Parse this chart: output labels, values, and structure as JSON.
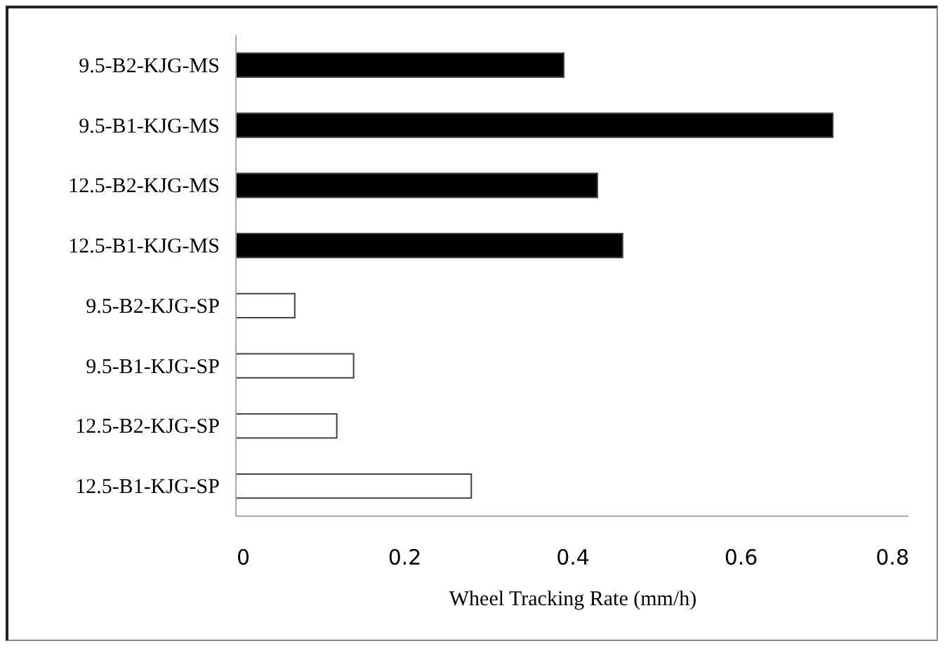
{
  "chart_data": {
    "type": "bar",
    "orientation": "horizontal",
    "xlabel": "Wheel Tracking Rate (mm/h)",
    "categories": [
      "9.5-B2-KJG-MS",
      "9.5-B1-KJG-MS",
      "12.5-B2-KJG-MS",
      "12.5-B1-KJG-MS",
      "9.5-B2-KJG-SP",
      "9.5-B1-KJG-SP",
      "12.5-B2-KJG-SP",
      "12.5-B1-KJG-SP"
    ],
    "values": [
      0.39,
      0.71,
      0.43,
      0.46,
      0.07,
      0.14,
      0.12,
      0.28
    ],
    "colors": [
      "#000000",
      "#000000",
      "#000000",
      "#000000",
      "#ffffff",
      "#ffffff",
      "#ffffff",
      "#ffffff"
    ],
    "xlim": [
      0,
      0.8
    ],
    "xticks": [
      0,
      0.2,
      0.4,
      0.6,
      0.8
    ],
    "grid": false
  }
}
